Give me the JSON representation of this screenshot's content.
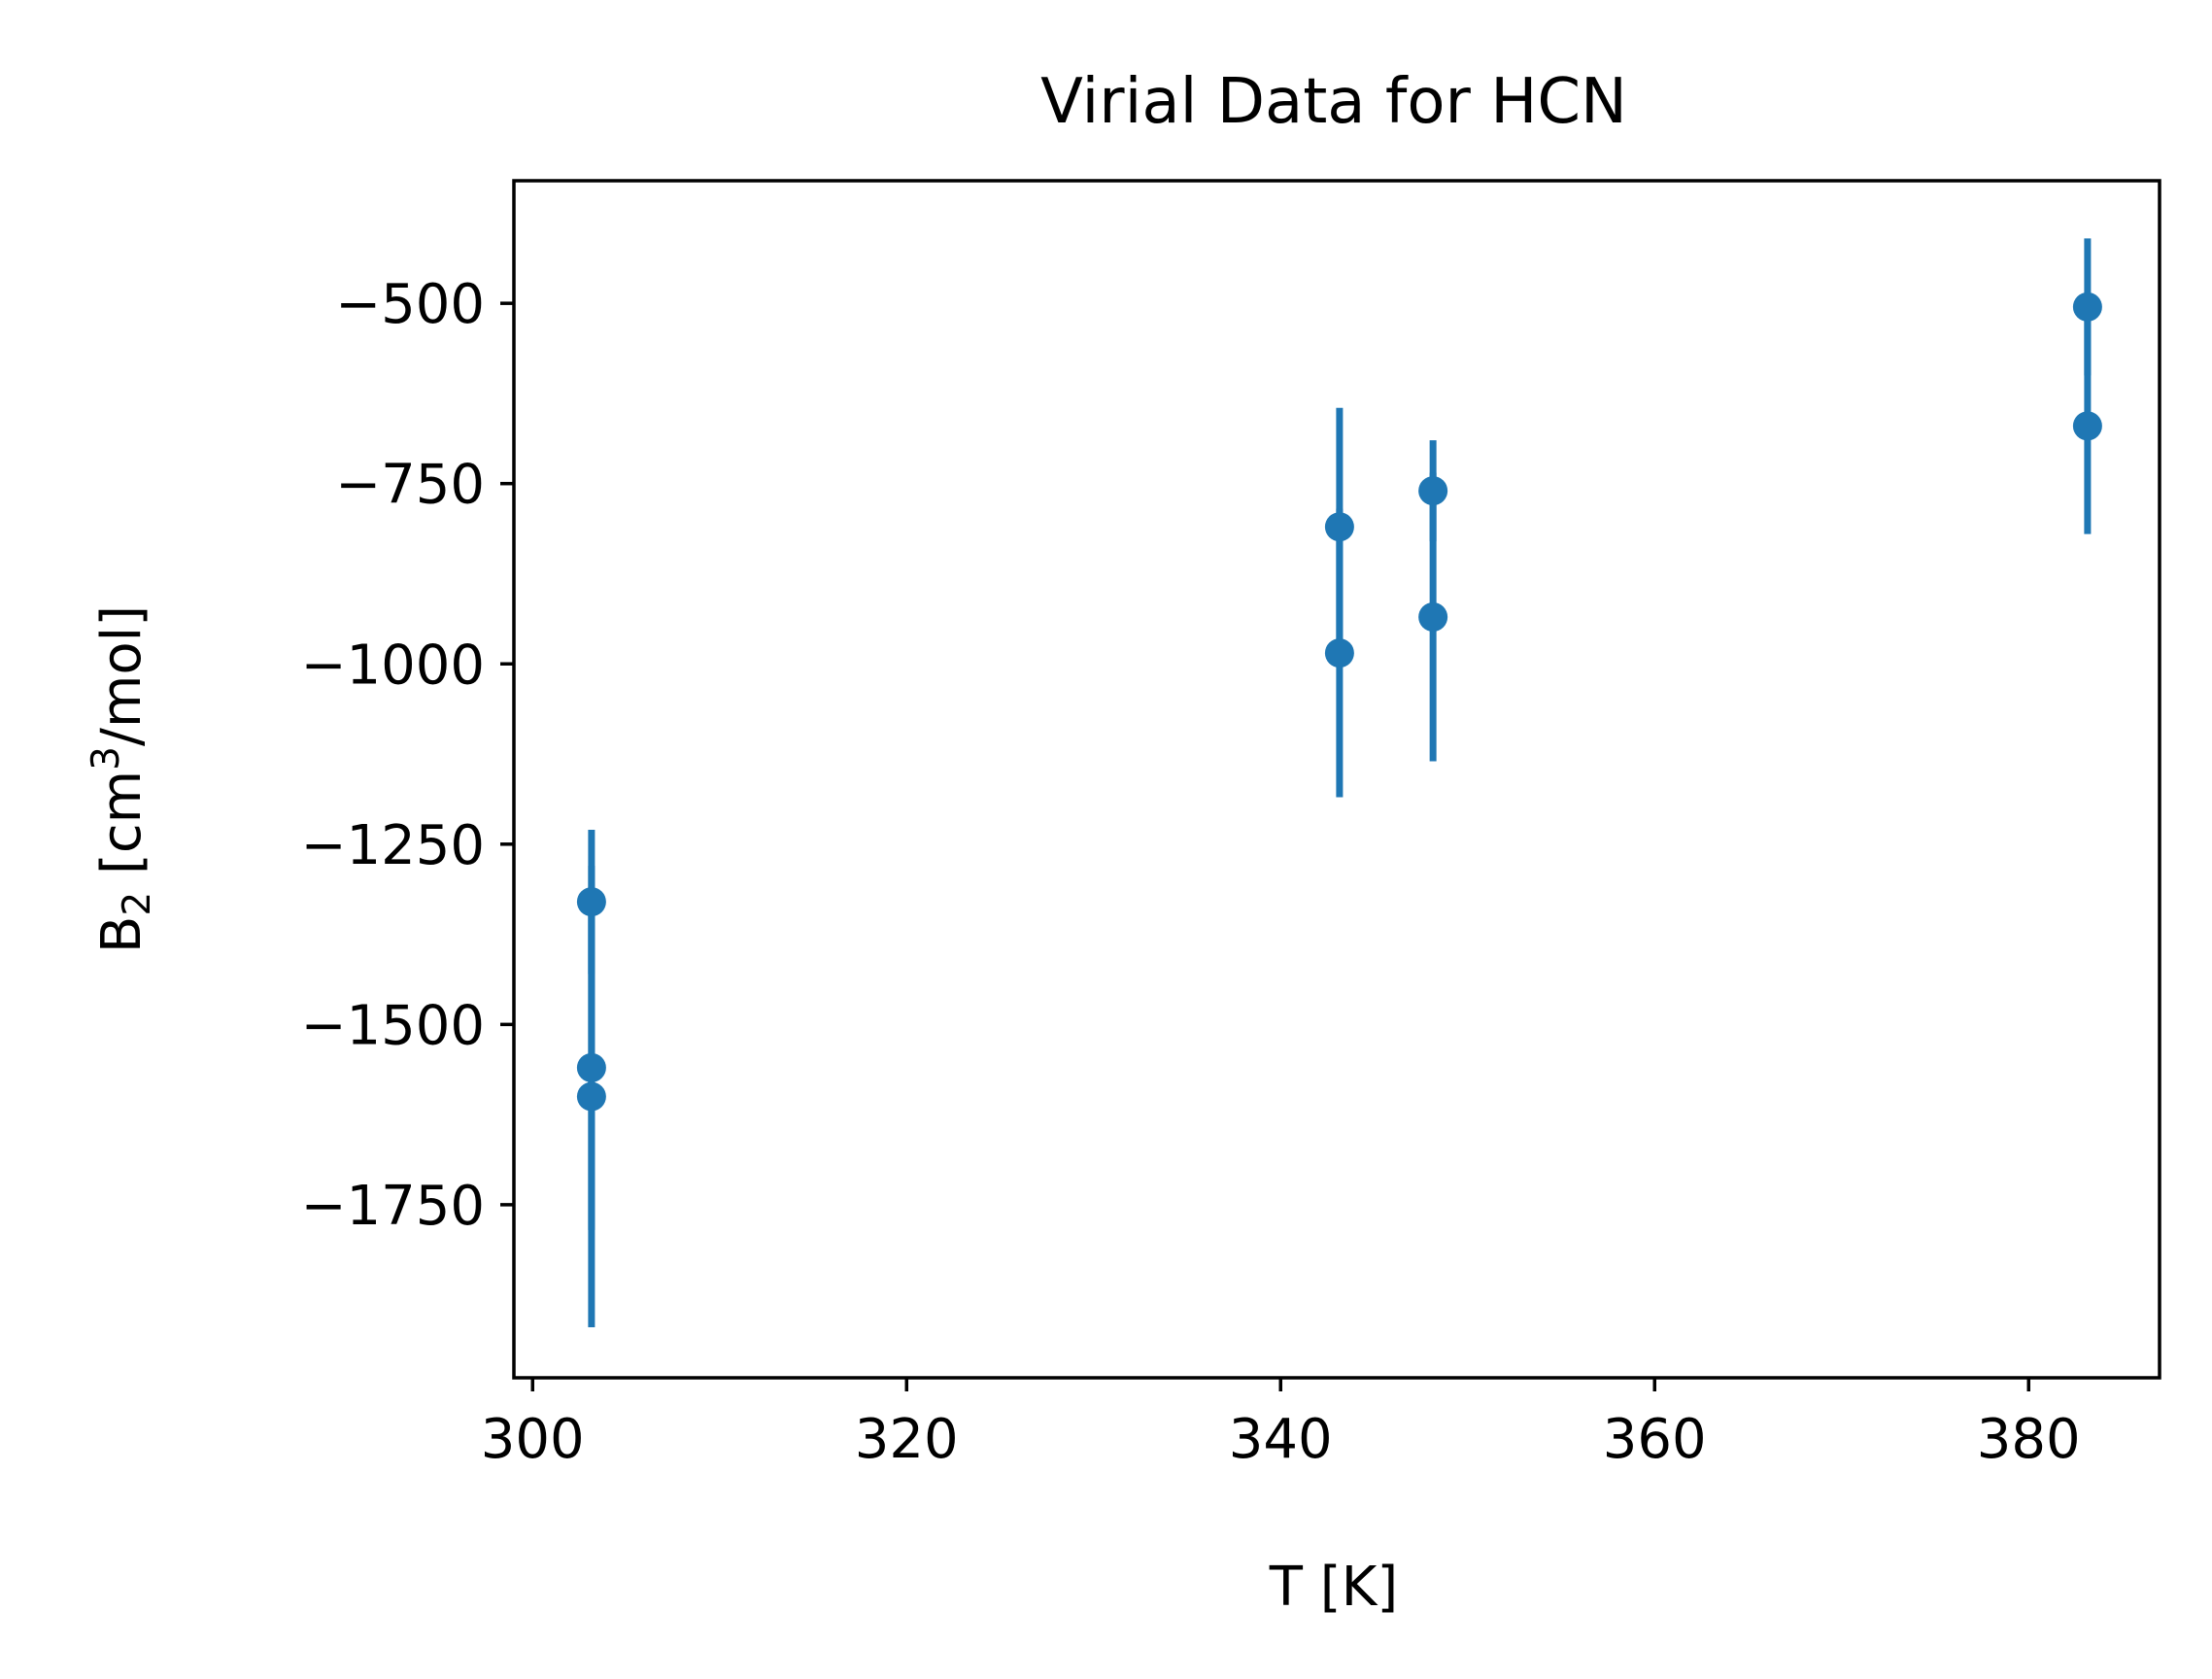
{
  "chart_data": {
    "type": "scatter",
    "title": "Virial Data for HCN",
    "xlabel": "T [K]",
    "ylabel_main": "B",
    "ylabel_sub": "2",
    "ylabel_rest_a": " [cm",
    "ylabel_sup": "3",
    "ylabel_rest_b": "/mol]",
    "xlim": [
      299,
      387
    ],
    "ylim": [
      -1990,
      -330
    ],
    "xticks": [
      300,
      320,
      340,
      360,
      380
    ],
    "yticks": [
      -500,
      -750,
      -1000,
      -1250,
      -1500,
      -1750
    ],
    "ytick_labels": [
      "−500",
      "−750",
      "−1000",
      "−1250",
      "−1500",
      "−1750"
    ],
    "xtick_labels": [
      "300",
      "320",
      "340",
      "360",
      "380"
    ],
    "grid": false,
    "color": "#1f77b4",
    "points": [
      {
        "x": 303.15,
        "y": -1330,
        "err": 100
      },
      {
        "x": 303.15,
        "y": -1560,
        "err": 225
      },
      {
        "x": 303.15,
        "y": -1600,
        "err": 320
      },
      {
        "x": 343.15,
        "y": -810,
        "err": 165
      },
      {
        "x": 343.15,
        "y": -985,
        "err": 200
      },
      {
        "x": 348.15,
        "y": -760,
        "err": 70
      },
      {
        "x": 348.15,
        "y": -935,
        "err": 200
      },
      {
        "x": 383.15,
        "y": -505,
        "err": 95
      },
      {
        "x": 383.15,
        "y": -670,
        "err": 150
      }
    ]
  }
}
